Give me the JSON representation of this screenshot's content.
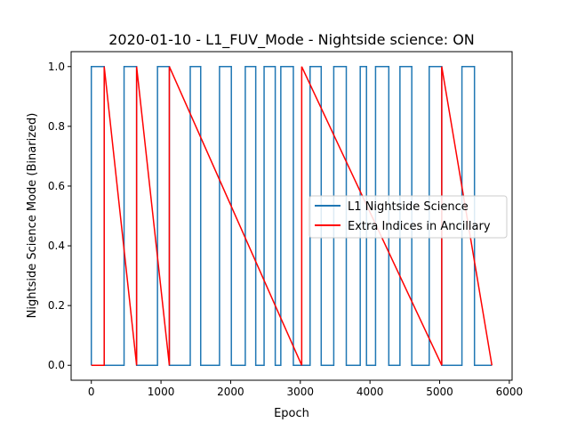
{
  "chart_data": {
    "type": "line",
    "title": "2020-01-10 - L1_FUV_Mode - Nightside science: ON",
    "xlabel": "Epoch",
    "ylabel": "Nightside Science Mode (Binarized)",
    "xlim": [
      -290,
      6040
    ],
    "ylim": [
      -0.05,
      1.05
    ],
    "xticks": [
      0,
      1000,
      2000,
      3000,
      4000,
      5000,
      6000
    ],
    "xtick_labels": [
      "0",
      "1000",
      "2000",
      "3000",
      "4000",
      "5000",
      "6000"
    ],
    "yticks": [
      0.0,
      0.2,
      0.4,
      0.6,
      0.8,
      1.0
    ],
    "ytick_labels": [
      "0.0",
      "0.2",
      "0.4",
      "0.6",
      "0.8",
      "1.0"
    ],
    "grid": false,
    "legend_position": "center-right",
    "series": [
      {
        "name": "L1 Nightside Science",
        "color": "#1f77b4",
        "x": [
          0,
          0,
          185,
          185,
          470,
          470,
          650,
          650,
          950,
          950,
          1120,
          1120,
          1420,
          1420,
          1570,
          1570,
          1840,
          1840,
          2010,
          2010,
          2210,
          2210,
          2360,
          2360,
          2480,
          2480,
          2640,
          2640,
          2720,
          2720,
          2900,
          2900,
          3140,
          3140,
          3300,
          3300,
          3480,
          3480,
          3660,
          3660,
          3860,
          3860,
          3950,
          3950,
          4080,
          4080,
          4270,
          4270,
          4430,
          4430,
          4600,
          4600,
          4850,
          4850,
          5030,
          5030,
          5320,
          5320,
          5500,
          5500,
          5750
        ],
        "y": [
          0,
          1,
          1,
          0,
          0,
          1,
          1,
          0,
          0,
          1,
          1,
          0,
          0,
          1,
          1,
          0,
          0,
          1,
          1,
          0,
          0,
          1,
          1,
          0,
          0,
          1,
          1,
          0,
          0,
          1,
          1,
          0,
          0,
          1,
          1,
          0,
          0,
          1,
          1,
          0,
          0,
          1,
          1,
          0,
          0,
          1,
          1,
          0,
          0,
          1,
          1,
          0,
          0,
          1,
          1,
          0,
          0,
          1,
          1,
          0,
          0
        ]
      },
      {
        "name": "Extra Indices in Ancillary",
        "color": "#ff0000",
        "x": [
          0,
          185,
          185,
          650,
          650,
          1120,
          1120,
          3020,
          3020,
          5030,
          5030,
          5750
        ],
        "y": [
          0,
          0,
          1,
          0,
          1,
          0,
          1,
          0,
          1,
          0,
          1,
          0
        ]
      }
    ]
  }
}
